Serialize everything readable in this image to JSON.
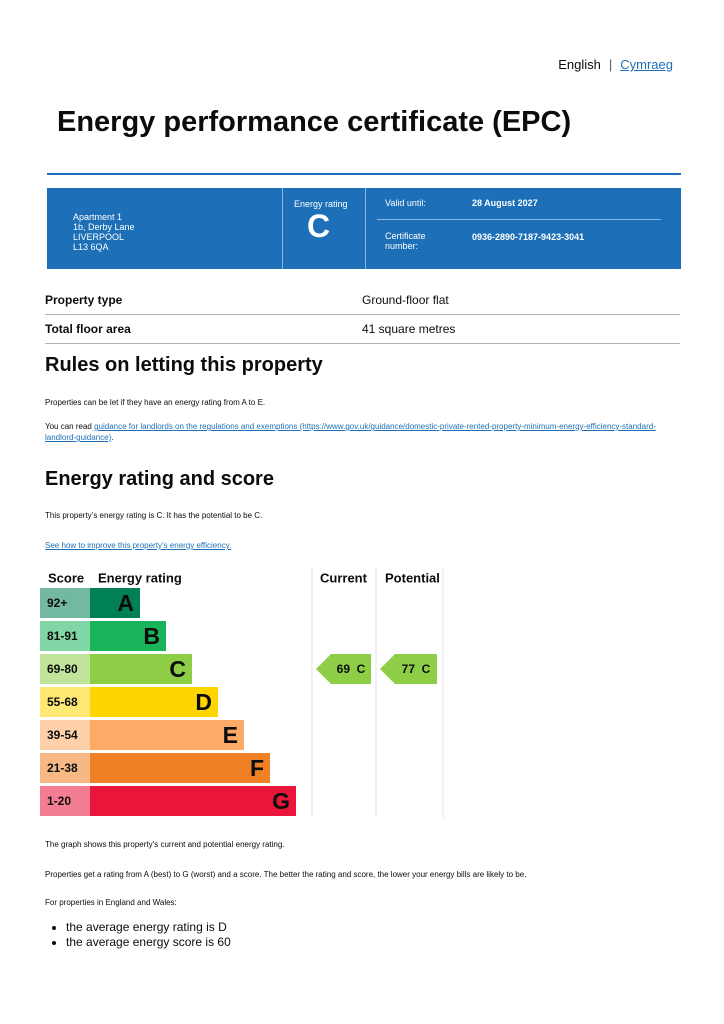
{
  "header": {
    "language_current": "English",
    "language_other": "Cymraeg",
    "title": "Energy performance certificate (EPC)"
  },
  "summary": {
    "address": [
      "Apartment 1",
      "1b, Derby Lane",
      "LIVERPOOL",
      "L13 6QA"
    ],
    "energy_rating_label": "Energy rating",
    "energy_rating": "C",
    "valid_until_label": "Valid until:",
    "valid_until": "28 August 2027",
    "certificate_number_label": "Certificate number:",
    "certificate_number": "0936-2890-7187-9423-3041"
  },
  "property": {
    "rows": [
      [
        "Property type",
        "Ground-floor flat"
      ],
      [
        "Total floor area",
        "41 square metres"
      ]
    ]
  },
  "letting": {
    "heading": "Rules on letting this property",
    "text": "Properties can be let if they have an energy rating from A to E.",
    "link_prefix": "You can read",
    "link_text": "guidance for landlords on the regulations and exemptions (https://www.gov.uk/guidance/domestic-private-rented-property-minimum-energy-efficiency-standard-landlord-guidance)",
    "link_suffix": "."
  },
  "rating": {
    "heading": "Energy rating and score",
    "text": "This property’s energy rating is C. It has the potential to be C.",
    "link": "See how to improve this property’s energy efficiency.",
    "chart": {
      "headers": [
        "Score",
        "Energy rating",
        "Current",
        "Potential"
      ],
      "bands": [
        {
          "score": "92+",
          "letter": "A",
          "color": "#008054"
        },
        {
          "score": "81-91",
          "letter": "B",
          "color": "#19b459"
        },
        {
          "score": "69-80",
          "letter": "C",
          "color": "#8dce46"
        },
        {
          "score": "55-68",
          "letter": "D",
          "color": "#ffd500"
        },
        {
          "score": "39-54",
          "letter": "E",
          "color": "#fcaa65"
        },
        {
          "score": "21-38",
          "letter": "F",
          "color": "#ef8023"
        },
        {
          "score": "1-20",
          "letter": "G",
          "color": "#e9153b"
        }
      ],
      "current": {
        "score": 69,
        "letter": "C"
      },
      "potential": {
        "score": 77,
        "letter": "C"
      }
    },
    "notes": [
      "The graph shows this property’s current and potential energy rating.",
      "Properties get a rating from A (best) to G (worst) and a score. The better the rating and score, the lower your energy bills are likely to be.",
      "For properties in England and Wales:"
    ],
    "bullets": [
      "the average energy rating is D",
      "the average energy score is 60"
    ]
  }
}
